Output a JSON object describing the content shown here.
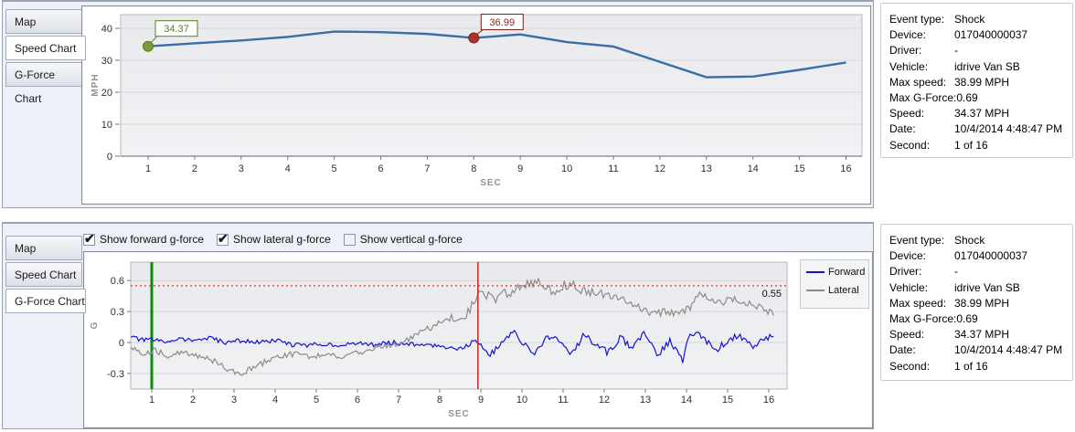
{
  "tabs": {
    "items": [
      {
        "label": "Map"
      },
      {
        "label": "Speed Chart"
      },
      {
        "label": "G-Force Chart"
      }
    ]
  },
  "top_panel": {
    "selected_tab": "Speed Chart"
  },
  "bottom_panel": {
    "selected_tab": "G-Force Chart"
  },
  "gforce_controls": {
    "items": [
      {
        "label": "Show forward g-force",
        "checked": true
      },
      {
        "label": "Show lateral g-force",
        "checked": true
      },
      {
        "label": "Show vertical g-force",
        "checked": false
      }
    ]
  },
  "event_info": {
    "rows": [
      {
        "label": "Event type:",
        "value": "Shock"
      },
      {
        "label": "Device:",
        "value": "017040000037"
      },
      {
        "label": "Driver:",
        "value": "-"
      },
      {
        "label": "Vehicle:",
        "value": "idrive Van SB"
      },
      {
        "label": "Max speed:",
        "value": "38.99 MPH"
      },
      {
        "label": "Max G-Force:",
        "value": "0.69"
      },
      {
        "label": "Speed:",
        "value": "34.37 MPH"
      },
      {
        "label": "Date:",
        "value": "10/4/2014 4:48:47 PM"
      },
      {
        "label": "Second:",
        "value": "1 of 16"
      }
    ]
  },
  "colors": {
    "panel_bg": "#edf0f6",
    "panel_border": "#96a0b4",
    "plot_bg": "#ecedef",
    "gridline": "#d6d7da",
    "speed_line": "#3b6da7",
    "forward_line": "#1313cf",
    "lateral_line": "#8b8b8b",
    "green_cursor": "#118a11",
    "red_cursor": "#d02020",
    "threshold": "#e23030"
  },
  "chart_data": [
    {
      "type": "line",
      "name": "speed-chart",
      "xlabel": "SEC",
      "ylabel": "MPH",
      "x": [
        1,
        2,
        3,
        4,
        5,
        6,
        7,
        8,
        9,
        10,
        11,
        12,
        13,
        14,
        15,
        16
      ],
      "values": [
        34.37,
        35.3,
        36.2,
        37.3,
        38.99,
        38.8,
        38.25,
        36.99,
        38.1,
        35.7,
        34.3,
        29.5,
        24.7,
        24.9,
        27.0,
        29.3
      ],
      "yticks": [
        0,
        10,
        20,
        30,
        40
      ],
      "xticks": [
        1,
        2,
        3,
        4,
        5,
        6,
        7,
        8,
        9,
        10,
        11,
        12,
        13,
        14,
        15,
        16
      ],
      "ylim": [
        0,
        44
      ],
      "line_color": "#3b6da7",
      "markers": [
        {
          "x": 1,
          "value": 34.37,
          "label": "34.37",
          "fill": "#7d9b31",
          "stroke": "#5f7d22",
          "text_color": "#5f7d22"
        },
        {
          "x": 8,
          "value": 36.99,
          "label": "36.99",
          "fill": "#a8352c",
          "stroke": "#7d1f18",
          "text_color": "#8b241c"
        }
      ]
    },
    {
      "type": "line",
      "name": "gforce-chart",
      "xlabel": "SEC",
      "ylabel": "G",
      "yticks": [
        -0.3,
        0,
        0.3,
        0.6
      ],
      "xticks": [
        1,
        2,
        3,
        4,
        5,
        6,
        7,
        8,
        9,
        10,
        11,
        12,
        13,
        14,
        15,
        16
      ],
      "ylim": [
        -0.45,
        0.78
      ],
      "xlim": [
        0.49,
        16.44
      ],
      "threshold": {
        "value": 0.55,
        "label": "0.55",
        "color": "#e23030"
      },
      "cursors": [
        {
          "x": 1,
          "color": "#118a11",
          "width": 3
        },
        {
          "x": 8.93,
          "color": "#d02020",
          "width": 1.5
        }
      ],
      "series": [
        {
          "name": "Forward",
          "color": "#1313cf",
          "seed": 7,
          "noise": [
            [
              0.45,
              8.5,
              0.022
            ],
            [
              8.5,
              16.2,
              0.032
            ]
          ],
          "keypoints": [
            [
              0.5,
              0.05
            ],
            [
              0.8,
              0.02
            ],
            [
              1,
              0.03
            ],
            [
              1.3,
              0
            ],
            [
              1.6,
              0.04
            ],
            [
              2,
              0.02
            ],
            [
              2.4,
              0.04
            ],
            [
              2.8,
              0
            ],
            [
              3.2,
              0.02
            ],
            [
              3.6,
              0
            ],
            [
              4,
              0.02
            ],
            [
              4.4,
              -0.02
            ],
            [
              4.8,
              -0.03
            ],
            [
              5.2,
              -0.01
            ],
            [
              5.6,
              -0.03
            ],
            [
              6,
              -0.01
            ],
            [
              6.4,
              -0.02
            ],
            [
              6.8,
              0
            ],
            [
              7.2,
              -0.01
            ],
            [
              7.6,
              -0.03
            ],
            [
              8,
              -0.03
            ],
            [
              8.4,
              -0.06
            ],
            [
              8.7,
              -0.02
            ],
            [
              8.9,
              0.03
            ],
            [
              9.2,
              -0.13
            ],
            [
              9.5,
              -0.01
            ],
            [
              9.8,
              0.1
            ],
            [
              10.1,
              -0.04
            ],
            [
              10.3,
              -0.12
            ],
            [
              10.6,
              0.06
            ],
            [
              10.9,
              0.03
            ],
            [
              11.2,
              -0.13
            ],
            [
              11.5,
              0.08
            ],
            [
              11.8,
              -0.02
            ],
            [
              12.1,
              -0.1
            ],
            [
              12.4,
              0.05
            ],
            [
              12.7,
              -0.06
            ],
            [
              13,
              0.1
            ],
            [
              13.3,
              -0.12
            ],
            [
              13.6,
              0.02
            ],
            [
              13.9,
              -0.18
            ],
            [
              14.1,
              0.1
            ],
            [
              14.4,
              0.05
            ],
            [
              14.7,
              -0.08
            ],
            [
              15,
              0.02
            ],
            [
              15.3,
              0.07
            ],
            [
              15.6,
              -0.04
            ],
            [
              15.9,
              0.05
            ],
            [
              16.1,
              0.06
            ]
          ]
        },
        {
          "name": "Lateral",
          "color": "#8b8b8b",
          "seed": 31,
          "noise": [
            [
              0.45,
              7.5,
              0.028
            ],
            [
              7.5,
              9,
              0.045
            ],
            [
              9,
              12,
              0.05
            ],
            [
              12,
              16.2,
              0.035
            ]
          ],
          "keypoints": [
            [
              0.5,
              -0.05
            ],
            [
              0.8,
              -0.1
            ],
            [
              1.1,
              -0.08
            ],
            [
              1.4,
              -0.13
            ],
            [
              1.7,
              -0.1
            ],
            [
              2,
              -0.12
            ],
            [
              2.3,
              -0.14
            ],
            [
              2.6,
              -0.2
            ],
            [
              2.9,
              -0.28
            ],
            [
              3.2,
              -0.3
            ],
            [
              3.5,
              -0.24
            ],
            [
              3.8,
              -0.18
            ],
            [
              4.1,
              -0.13
            ],
            [
              4.5,
              -0.11
            ],
            [
              4.9,
              -0.14
            ],
            [
              5.3,
              -0.12
            ],
            [
              5.7,
              -0.14
            ],
            [
              6,
              -0.1
            ],
            [
              6.4,
              -0.06
            ],
            [
              6.8,
              -0.03
            ],
            [
              7.1,
              0
            ],
            [
              7.5,
              0.08
            ],
            [
              8,
              0.18
            ],
            [
              8.3,
              0.25
            ],
            [
              8.6,
              0.24
            ],
            [
              8.85,
              0.4
            ],
            [
              9,
              0.5
            ],
            [
              9.3,
              0.42
            ],
            [
              9.6,
              0.47
            ],
            [
              9.9,
              0.52
            ],
            [
              10.2,
              0.56
            ],
            [
              10.4,
              0.6
            ],
            [
              10.6,
              0.5
            ],
            [
              10.9,
              0.52
            ],
            [
              11.1,
              0.57
            ],
            [
              11.4,
              0.52
            ],
            [
              11.7,
              0.48
            ],
            [
              12,
              0.47
            ],
            [
              12.3,
              0.44
            ],
            [
              12.6,
              0.4
            ],
            [
              12.9,
              0.32
            ],
            [
              13.2,
              0.28
            ],
            [
              13.5,
              0.3
            ],
            [
              13.8,
              0.28
            ],
            [
              14.1,
              0.34
            ],
            [
              14.3,
              0.5
            ],
            [
              14.5,
              0.42
            ],
            [
              14.8,
              0.38
            ],
            [
              15.1,
              0.42
            ],
            [
              15.4,
              0.4
            ],
            [
              15.7,
              0.35
            ],
            [
              16,
              0.3
            ],
            [
              16.15,
              0.27
            ]
          ]
        }
      ]
    }
  ]
}
